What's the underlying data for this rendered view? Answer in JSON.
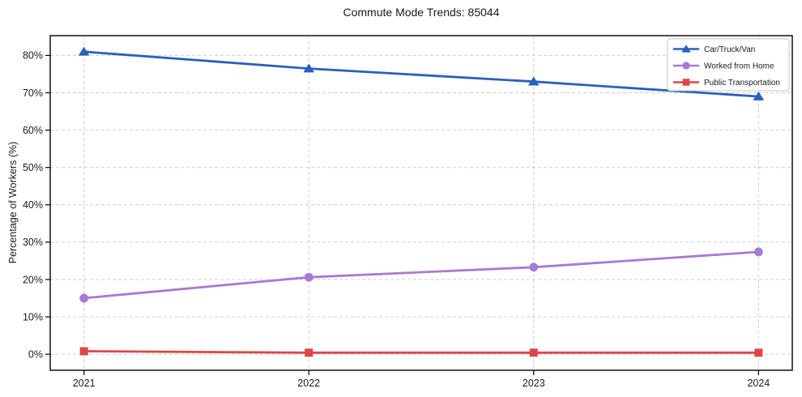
{
  "figure": {
    "background": "#ffffff"
  },
  "chart_data": {
    "type": "line",
    "title": "Commute Mode Trends: 85044",
    "xlabel": "",
    "ylabel": "Percentage of Workers (%)",
    "x": [
      2021,
      2022,
      2023,
      2024
    ],
    "x_tick_labels": [
      "2021",
      "2022",
      "2023",
      "2024"
    ],
    "yticks": [
      0,
      10,
      20,
      30,
      40,
      50,
      60,
      70,
      80
    ],
    "ytick_suffix": "%",
    "xlim": [
      2020.85,
      2024.15
    ],
    "ylim": [
      -4.3,
      85.3
    ],
    "grid": true,
    "grid_style": "dashed",
    "legend_position": "upper right",
    "series": [
      {
        "name": "Car/Truck/Van",
        "slug": "car-truck-van",
        "color": "#2a5fbe",
        "marker": "triangle",
        "values": [
          81,
          76.5,
          73,
          69
        ]
      },
      {
        "name": "Worked from Home",
        "slug": "worked-from-home",
        "color": "#a47bd6",
        "marker": "circle",
        "values": [
          15,
          20.6,
          23.3,
          27.4
        ]
      },
      {
        "name": "Public Transportation",
        "slug": "public-transportation",
        "color": "#e04545",
        "marker": "square",
        "values": [
          0.8,
          0.4,
          0.4,
          0.4
        ]
      }
    ]
  },
  "colors": {
    "grid": "#cfcfcf",
    "spine": "#000000",
    "text": "#1a1a1a",
    "legend_border": "#c4c4c4",
    "legend_bg": "#ffffff"
  }
}
